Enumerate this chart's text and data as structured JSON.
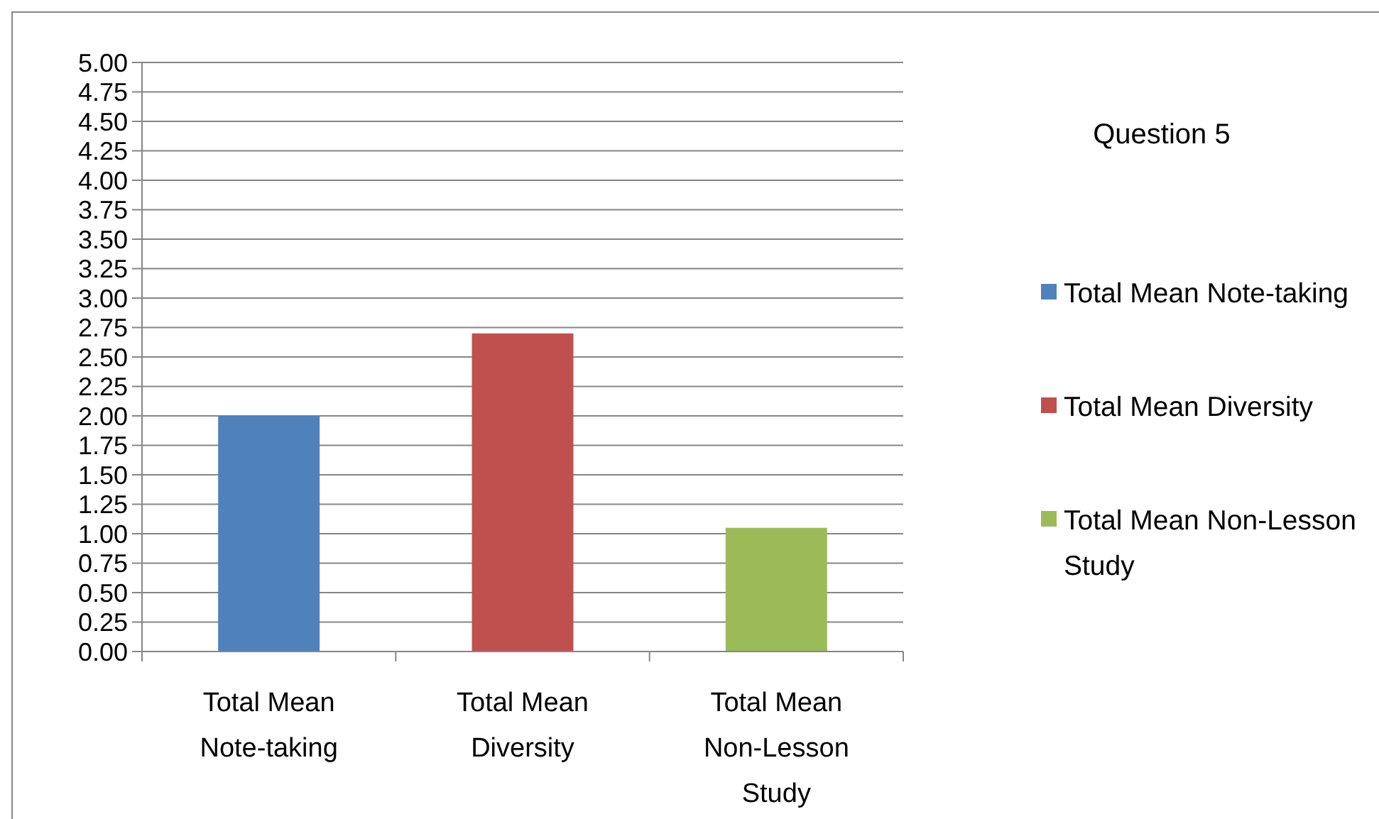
{
  "chart_data": {
    "type": "bar",
    "title": "Question 5",
    "categories": [
      "Total Mean Note-taking",
      "Total Mean Diversity",
      "Total Mean Non-Lesson Study"
    ],
    "series": [
      {
        "name": "Total Mean Note-taking",
        "color": "#4f81bd",
        "values": [
          2.0,
          null,
          null
        ]
      },
      {
        "name": "Total Mean Diversity",
        "color": "#c0504d",
        "values": [
          null,
          2.7,
          null
        ]
      },
      {
        "name": "Total Mean Non-Lesson Study",
        "color": "#9bbb59",
        "values": [
          null,
          null,
          1.05
        ]
      }
    ],
    "ylim": [
      0,
      5
    ],
    "yticks": [
      {
        "value": 0,
        "label": "0.00"
      },
      {
        "value": 0.25,
        "label": "0.25"
      },
      {
        "value": 0.5,
        "label": "0.50"
      },
      {
        "value": 0.75,
        "label": "0.75"
      },
      {
        "value": 1,
        "label": "1.00"
      },
      {
        "value": 1.25,
        "label": "1.25"
      },
      {
        "value": 1.5,
        "label": "1.50"
      },
      {
        "value": 1.75,
        "label": "1.75"
      },
      {
        "value": 2,
        "label": "2.00"
      },
      {
        "value": 2.25,
        "label": "2.25"
      },
      {
        "value": 2.5,
        "label": "2.50"
      },
      {
        "value": 2.75,
        "label": "2.75"
      },
      {
        "value": 3,
        "label": "3.00"
      },
      {
        "value": 3.25,
        "label": "3.25"
      },
      {
        "value": 3.5,
        "label": "3.50"
      },
      {
        "value": 3.75,
        "label": "3.75"
      },
      {
        "value": 4,
        "label": "4.00"
      },
      {
        "value": 4.25,
        "label": "4.25"
      },
      {
        "value": 4.5,
        "label": "4.50"
      },
      {
        "value": 4.75,
        "label": "4.75"
      },
      {
        "value": 5,
        "label": "5.00"
      }
    ],
    "grid": "y",
    "legend": "right"
  }
}
